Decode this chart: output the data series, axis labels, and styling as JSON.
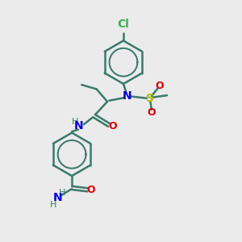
{
  "bg_color": "#ebebeb",
  "bond_color": "#3a7a6a",
  "cl_color": "#3cb054",
  "n_color": "#0000dd",
  "o_color": "#dd0000",
  "s_color": "#bbbb00",
  "bond_lw": 1.8,
  "font_size": 9,
  "fig_size": [
    3.0,
    3.0
  ],
  "dpi": 100,
  "xlim": [
    0,
    10
  ],
  "ylim": [
    0,
    10
  ]
}
